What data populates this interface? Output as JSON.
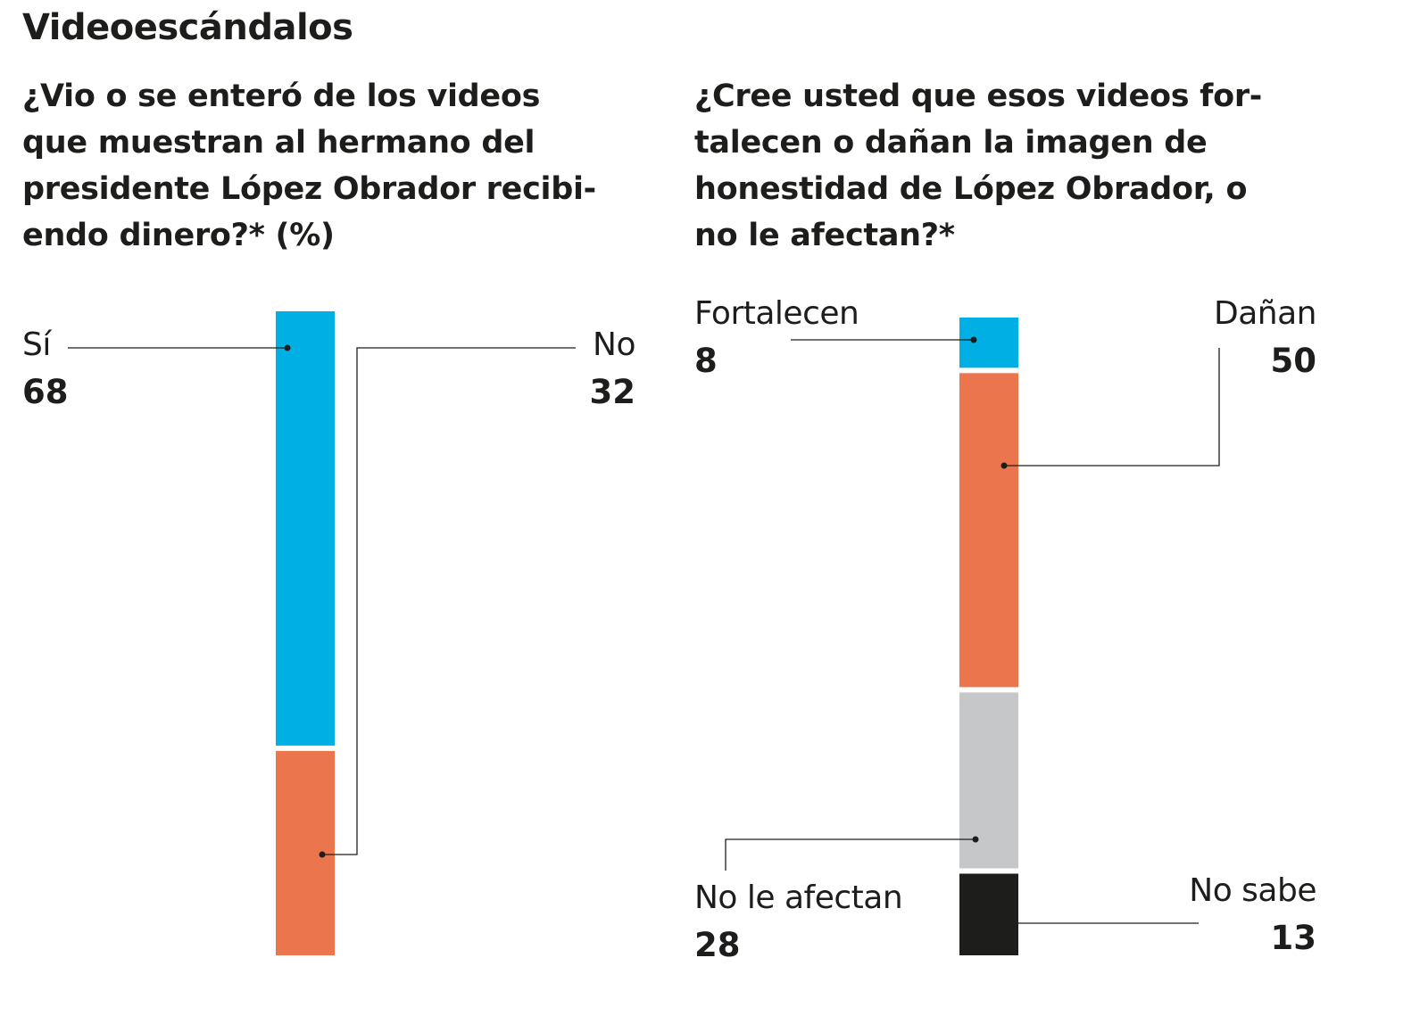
{
  "title": "Videoescándalos",
  "chart_data": [
    {
      "type": "bar",
      "stacked": true,
      "title": "¿Vio o se enteró de los videos que muestran al hermano del presidente López Obrador recibiendo dinero?* (%)",
      "title_lines": [
        "¿Vio o se enteró de los videos",
        "que muestran al hermano del",
        "presidente López Obrador recibi-",
        "endo dinero?* (%)"
      ],
      "categories": [
        "Sí",
        "No"
      ],
      "values": [
        68,
        32
      ],
      "colors": [
        "#00b0e4",
        "#eb764d"
      ]
    },
    {
      "type": "bar",
      "stacked": true,
      "title": "¿Cree usted que esos videos fortalecen o dañan la imagen de honestidad de López Obrador, o no le afectan?*",
      "title_lines": [
        "¿Cree usted que esos videos for-",
        "talecen o dañan la imagen de",
        "honestidad de López Obrador, o",
        "no le afectan?*"
      ],
      "categories": [
        "Fortalecen",
        "Dañan",
        "No le afectan",
        "No sabe"
      ],
      "values": [
        8,
        50,
        28,
        13
      ],
      "colors": [
        "#00b0e4",
        "#eb764d",
        "#c6c7c8",
        "#1d1d1b"
      ]
    }
  ]
}
